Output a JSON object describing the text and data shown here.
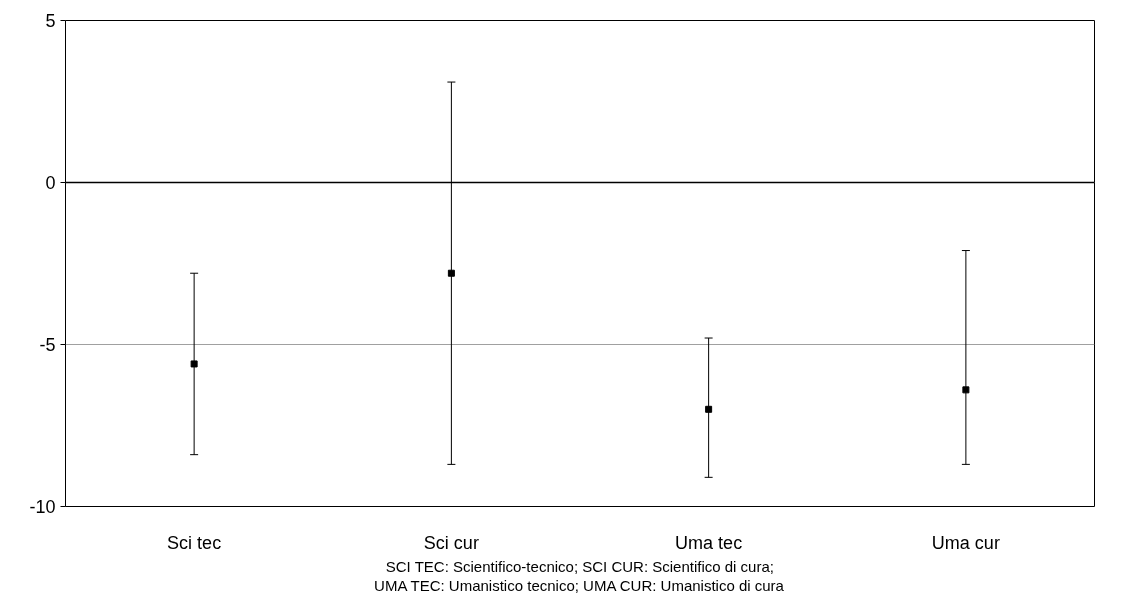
{
  "chart_data": {
    "type": "scatter",
    "categories": [
      "Sci tec",
      "Sci cur",
      "Uma tec",
      "Uma cur"
    ],
    "values": [
      -5.6,
      -2.8,
      -7.0,
      -6.4
    ],
    "errors": [
      [
        -8.4,
        -2.8
      ],
      [
        -8.7,
        3.1
      ],
      [
        -9.1,
        -4.8
      ],
      [
        -8.7,
        -2.1
      ]
    ],
    "color": "#000000",
    "marker": "square",
    "ylim": [
      -10,
      5
    ],
    "yticks": [
      -10,
      -5,
      0,
      5
    ],
    "grid": "y",
    "ref_lines": [
      {
        "axis": "y",
        "value": 0,
        "color": "#000000"
      }
    ],
    "annotations": [
      "SCI TEC: Scientifico-tecnico; SCI CUR: Scientifico di cura;",
      "UMA TEC: Umanistico tecnico; UMA CUR: Umanistico di cura"
    ]
  }
}
